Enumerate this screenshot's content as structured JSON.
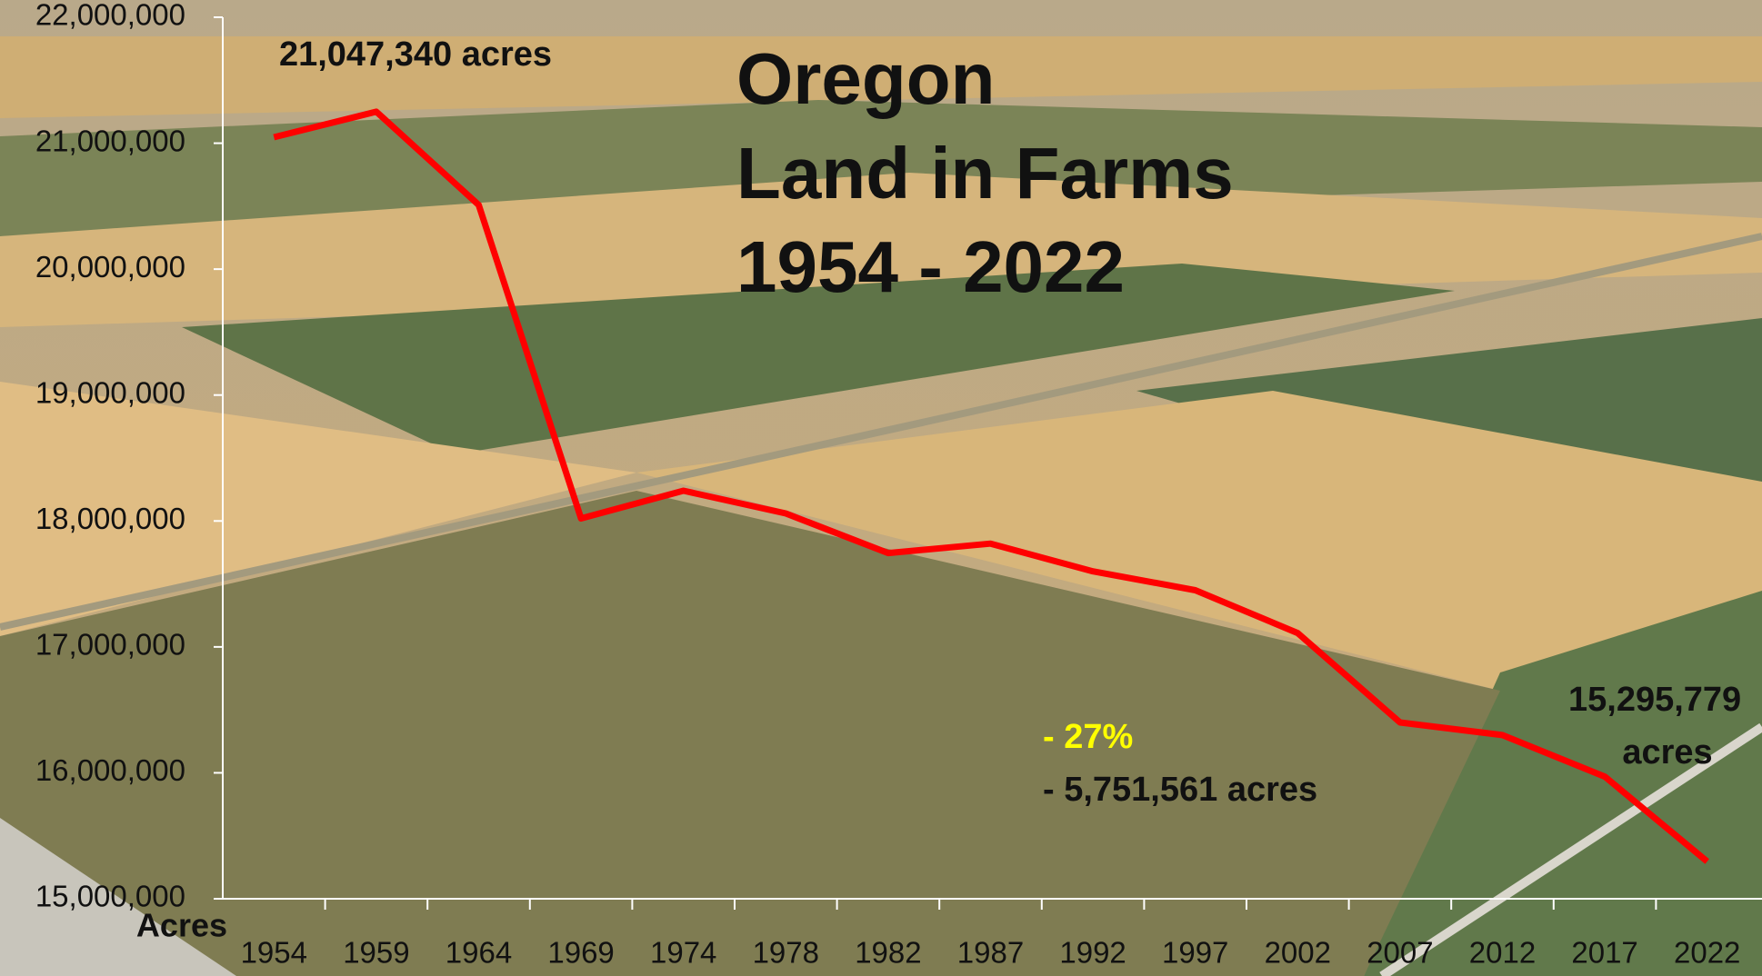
{
  "chart_data": {
    "type": "line",
    "title_lines": [
      "Oregon",
      "Land in Farms",
      "1954 - 2022"
    ],
    "y_axis_label": "Acres",
    "categories": [
      "1954",
      "1959",
      "1964",
      "1969",
      "1974",
      "1978",
      "1982",
      "1987",
      "1992",
      "1997",
      "2002",
      "2007",
      "2012",
      "2017",
      "2022"
    ],
    "series": [
      {
        "color": "#ff0000",
        "values": [
          21047340,
          21250000,
          20510000,
          18020000,
          18240000,
          18060000,
          17745000,
          17820000,
          17600000,
          17450000,
          17110000,
          16400000,
          16300000,
          15970000,
          15295779
        ]
      }
    ],
    "ylim": [
      15000000,
      22000000
    ],
    "yticks": [
      {
        "value": 15000000,
        "label": "15,000,000"
      },
      {
        "value": 16000000,
        "label": "16,000,000"
      },
      {
        "value": 17000000,
        "label": "17,000,000"
      },
      {
        "value": 18000000,
        "label": "18,000,000"
      },
      {
        "value": 19000000,
        "label": "19,000,000"
      },
      {
        "value": 20000000,
        "label": "20,000,000"
      },
      {
        "value": 21000000,
        "label": "21,000,000"
      },
      {
        "value": 22000000,
        "label": "22,000,000"
      }
    ],
    "annotations": [
      {
        "text": "21,047,340 acres",
        "color": "#111111"
      },
      {
        "text": "- 27%",
        "color": "#ffff00"
      },
      {
        "text": "- 5,751,561 acres",
        "color": "#111111"
      },
      {
        "text": "15,295,779",
        "color": "#111111"
      },
      {
        "text": "acres",
        "color": "#111111"
      }
    ]
  }
}
